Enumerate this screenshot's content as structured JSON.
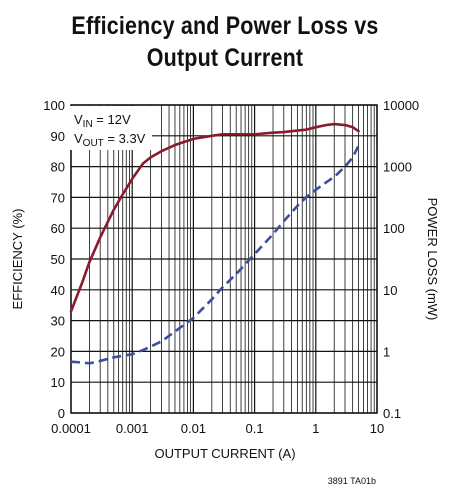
{
  "chart_data": {
    "type": "line",
    "title_lines": [
      "Efficiency and Power Loss vs",
      "Output Current"
    ],
    "xlabel": "OUTPUT CURRENT (A)",
    "ylabel": "EFFICIENCY (%)",
    "y2label": "POWER LOSS (mW)",
    "x_scale": "log",
    "xlim": [
      0.0001,
      10
    ],
    "ylim": [
      0,
      100
    ],
    "y2_scale": "log",
    "y2lim": [
      0.1,
      10000
    ],
    "x_ticks": [
      0.0001,
      0.001,
      0.01,
      0.1,
      1,
      10
    ],
    "x_tick_labels": [
      "0.0001",
      "0.001",
      "0.01",
      "0.1",
      "1",
      "10"
    ],
    "y_ticks": [
      0,
      10,
      20,
      30,
      40,
      50,
      60,
      70,
      80,
      90,
      100
    ],
    "y_tick_labels": [
      "0",
      "10",
      "20",
      "30",
      "40",
      "50",
      "60",
      "70",
      "80",
      "90",
      "100"
    ],
    "y2_ticks": [
      0.1,
      1,
      10,
      100,
      1000,
      10000
    ],
    "y2_tick_labels": [
      "0.1",
      "1",
      "10",
      "100",
      "1000",
      "10000"
    ],
    "grid": true,
    "annotation": {
      "vin_main": "V",
      "vin_sub": "IN",
      "vin_value": " = 12V",
      "vout_main": "V",
      "vout_sub": "OUT",
      "vout_value": " = 3.3V"
    },
    "reference_code": "3891 TA01b",
    "colors": {
      "efficiency": "#8b1a2e",
      "power_loss": "#3b4f9c",
      "grid": "#111111"
    },
    "series": [
      {
        "axis": "left",
        "style": "solid",
        "x": [
          0.0001,
          0.00015,
          0.0002,
          0.0003,
          0.0005,
          0.0007,
          0.001,
          0.0015,
          0.002,
          0.003,
          0.005,
          0.007,
          0.01,
          0.02,
          0.03,
          0.05,
          0.1,
          0.2,
          0.3,
          0.5,
          0.7,
          1,
          1.5,
          2,
          3,
          4,
          5
        ],
        "y": [
          33,
          42,
          49,
          57,
          66,
          71,
          76,
          81,
          83,
          85,
          87,
          88,
          89,
          90,
          90.5,
          90.5,
          90.5,
          91,
          91.2,
          91.7,
          92,
          92.8,
          93.5,
          93.8,
          93.5,
          92.8,
          91.5
        ]
      },
      {
        "axis": "right",
        "style": "dashed",
        "x": [
          0.0001,
          0.00015,
          0.0002,
          0.0003,
          0.0005,
          0.0007,
          0.001,
          0.0015,
          0.002,
          0.003,
          0.005,
          0.007,
          0.01,
          0.02,
          0.03,
          0.05,
          0.1,
          0.2,
          0.3,
          0.5,
          0.7,
          1,
          1.5,
          2,
          3,
          4,
          5
        ],
        "y": [
          0.68,
          0.66,
          0.64,
          0.7,
          0.8,
          0.85,
          0.9,
          1.05,
          1.2,
          1.45,
          2.1,
          2.7,
          3.5,
          7,
          11,
          18,
          38,
          80,
          130,
          230,
          320,
          420,
          560,
          680,
          1000,
          1400,
          2200
        ]
      }
    ]
  }
}
